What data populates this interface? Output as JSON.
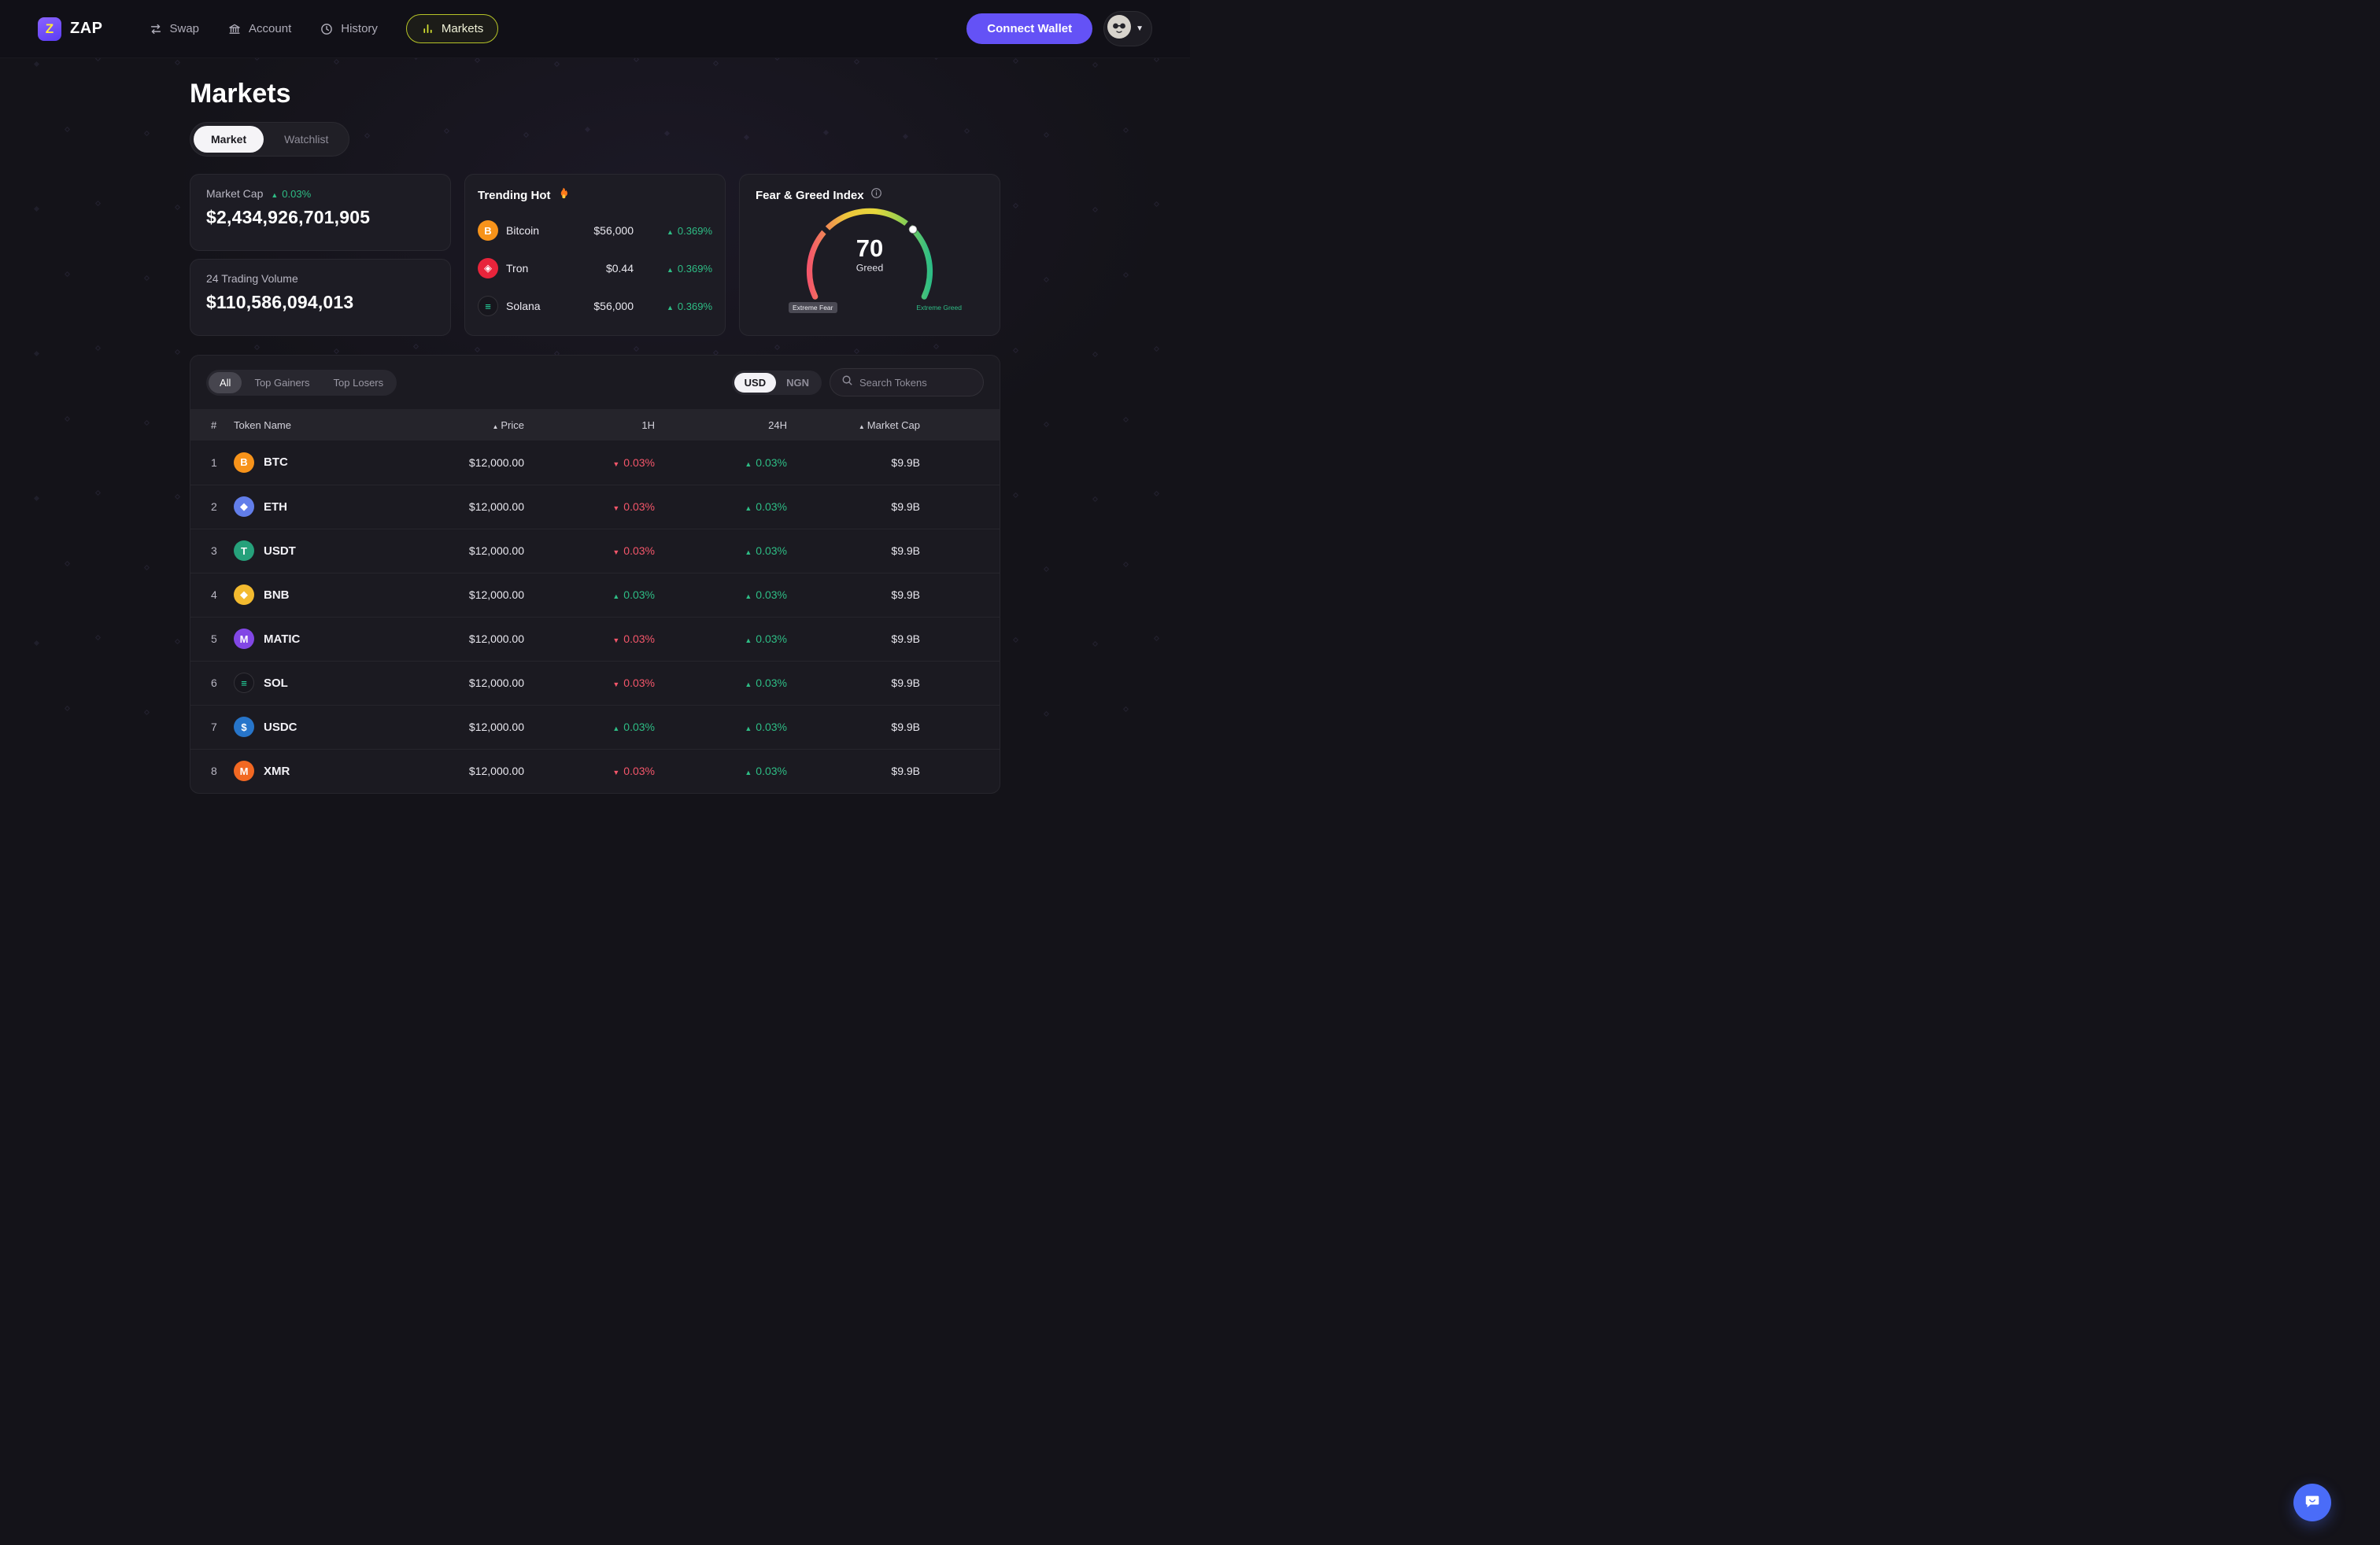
{
  "brand": {
    "name": "ZAP"
  },
  "nav": {
    "items": [
      {
        "label": "Swap"
      },
      {
        "label": "Account"
      },
      {
        "label": "History"
      },
      {
        "label": "Markets"
      }
    ],
    "connect_wallet": "Connect Wallet"
  },
  "page": {
    "title": "Markets"
  },
  "tabs": {
    "market": "Market",
    "watchlist": "Watchlist"
  },
  "stats": {
    "market_cap": {
      "label": "Market Cap",
      "change": "0.03%",
      "change_direction": "up",
      "value": "$2,434,926,701,905"
    },
    "volume": {
      "label": "24 Trading Volume",
      "value": "$110,586,094,013"
    }
  },
  "trending": {
    "title": "Trending Hot",
    "items": [
      {
        "name": "Bitcoin",
        "price": "$56,000",
        "change": "0.369%",
        "direction": "up",
        "icon": "bitcoin-icon",
        "icon_bg": "#f7931a",
        "icon_fg": "#ffffff",
        "glyph": "B"
      },
      {
        "name": "Tron",
        "price": "$0.44",
        "change": "0.369%",
        "direction": "up",
        "icon": "tron-icon",
        "icon_bg": "#e8243b",
        "icon_fg": "#ffffff",
        "glyph": "◈"
      },
      {
        "name": "Solana",
        "price": "$56,000",
        "change": "0.369%",
        "direction": "up",
        "icon": "solana-icon",
        "icon_bg": "#17161d",
        "icon_fg": "#24e0a4",
        "glyph": "≡"
      }
    ]
  },
  "fear_greed": {
    "title": "Fear & Greed Index",
    "value": 70,
    "label": "Greed",
    "min_label": "Extreme Fear",
    "max_label": "Extreme Greed"
  },
  "filters": {
    "all": "All",
    "top_gainers": "Top Gainers",
    "top_losers": "Top Losers"
  },
  "currency": {
    "usd": "USD",
    "ngn": "NGN"
  },
  "search": {
    "placeholder": "Search Tokens"
  },
  "table": {
    "headers": {
      "rank": "#",
      "token": "Token Name",
      "price": "Price",
      "h1": "1H",
      "h24": "24H",
      "mcap": "Market Cap"
    },
    "rows": [
      {
        "rank": "1",
        "symbol": "BTC",
        "icon": "btc-icon",
        "icon_bg": "#f7931a",
        "icon_fg": "#ffffff",
        "glyph": "B",
        "price": "$12,000.00",
        "h1": "0.03%",
        "h1_dir": "down",
        "h24": "0.03%",
        "h24_dir": "up",
        "mcap": "$9.9B"
      },
      {
        "rank": "2",
        "symbol": "ETH",
        "icon": "eth-icon",
        "icon_bg": "#627eea",
        "icon_fg": "#ffffff",
        "glyph": "◆",
        "price": "$12,000.00",
        "h1": "0.03%",
        "h1_dir": "down",
        "h24": "0.03%",
        "h24_dir": "up",
        "mcap": "$9.9B"
      },
      {
        "rank": "3",
        "symbol": "USDT",
        "icon": "usdt-icon",
        "icon_bg": "#26a17b",
        "icon_fg": "#ffffff",
        "glyph": "T",
        "price": "$12,000.00",
        "h1": "0.03%",
        "h1_dir": "down",
        "h24": "0.03%",
        "h24_dir": "up",
        "mcap": "$9.9B"
      },
      {
        "rank": "4",
        "symbol": "BNB",
        "icon": "bnb-icon",
        "icon_bg": "#f3ba2f",
        "icon_fg": "#ffffff",
        "glyph": "◆",
        "price": "$12,000.00",
        "h1": "0.03%",
        "h1_dir": "up",
        "h24": "0.03%",
        "h24_dir": "up",
        "mcap": "$9.9B"
      },
      {
        "rank": "5",
        "symbol": "MATIC",
        "icon": "matic-icon",
        "icon_bg": "#8247e5",
        "icon_fg": "#ffffff",
        "glyph": "M",
        "price": "$12,000.00",
        "h1": "0.03%",
        "h1_dir": "down",
        "h24": "0.03%",
        "h24_dir": "up",
        "mcap": "$9.9B"
      },
      {
        "rank": "6",
        "symbol": "SOL",
        "icon": "sol-icon",
        "icon_bg": "#17161d",
        "icon_fg": "#24e0a4",
        "glyph": "≡",
        "price": "$12,000.00",
        "h1": "0.03%",
        "h1_dir": "down",
        "h24": "0.03%",
        "h24_dir": "up",
        "mcap": "$9.9B"
      },
      {
        "rank": "7",
        "symbol": "USDC",
        "icon": "usdc-icon",
        "icon_bg": "#2775ca",
        "icon_fg": "#ffffff",
        "glyph": "$",
        "price": "$12,000.00",
        "h1": "0.03%",
        "h1_dir": "up",
        "h24": "0.03%",
        "h24_dir": "up",
        "mcap": "$9.9B"
      },
      {
        "rank": "8",
        "symbol": "XMR",
        "icon": "xmr-icon",
        "icon_bg": "#f26822",
        "icon_fg": "#ffffff",
        "glyph": "M",
        "price": "$12,000.00",
        "h1": "0.03%",
        "h1_dir": "down",
        "h24": "0.03%",
        "h24_dir": "up",
        "mcap": "$9.9B"
      }
    ]
  },
  "colors": {
    "green": "#2ebd85",
    "red": "#f4566a",
    "accent": "#6452f6",
    "yellow": "#d7e431",
    "chat_blue": "#4a6cf8"
  }
}
